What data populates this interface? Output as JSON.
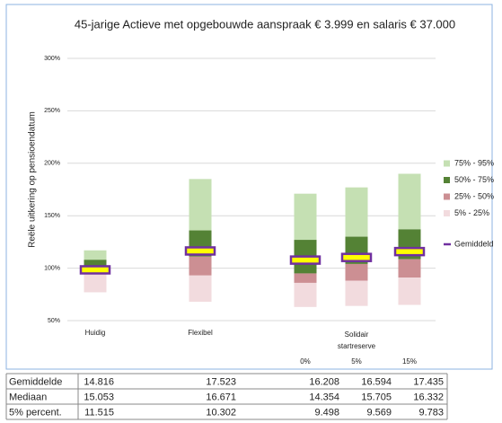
{
  "chart_data": {
    "type": "range-bar",
    "title": "45-jarige Actieve met opgebouwde aanspraak € 3.999 en salaris € 37.000",
    "y_label": "Reële uitkering op pensioendatum",
    "categories": [
      "Huidig",
      "Flexibel",
      "0%",
      "5%",
      "15%"
    ],
    "group_label": [
      "Solidair",
      "startreserve"
    ],
    "ylim": [
      50,
      300
    ],
    "yticks": [
      {
        "value": 50,
        "label": "50%"
      },
      {
        "value": 100,
        "label": "100%"
      },
      {
        "value": 150,
        "label": "150%"
      },
      {
        "value": 200,
        "label": "200%"
      },
      {
        "value": 250,
        "label": "250%"
      },
      {
        "value": 300,
        "label": "300%"
      }
    ],
    "grid": true,
    "series": [
      {
        "name": "75% - 95%",
        "color": "#c5e0b3",
        "values": [
          [
            108,
            117
          ],
          [
            136,
            185
          ],
          [
            127,
            171
          ],
          [
            130,
            177
          ],
          [
            137,
            190
          ]
        ]
      },
      {
        "name": "50% - 75%",
        "color": "#548235",
        "values": [
          [
            100,
            108
          ],
          [
            111,
            136
          ],
          [
            95,
            127
          ],
          [
            104,
            130
          ],
          [
            108.5,
            137
          ]
        ]
      },
      {
        "name": "25% - 50%",
        "color": "#cc8f93",
        "values": [
          [
            94,
            100
          ],
          [
            93,
            111
          ],
          [
            86,
            95
          ],
          [
            88,
            104
          ],
          [
            91,
            108.5
          ]
        ]
      },
      {
        "name": "5% - 25%",
        "color": "#f2dbde",
        "values": [
          [
            77,
            94
          ],
          [
            68,
            93
          ],
          [
            63,
            86
          ],
          [
            64,
            88
          ],
          [
            65,
            91
          ]
        ]
      }
    ],
    "mean": {
      "name": "Gemiddeld",
      "color": "#7030a0",
      "fill": "#ffff00",
      "values": [
        98.4,
        116.4,
        107.7,
        110.2,
        115.8
      ]
    }
  },
  "table": {
    "rows": [
      [
        "Gemiddelde",
        "14.816",
        "17.523",
        "16.208",
        "16.594",
        "17.435"
      ],
      [
        "Mediaan",
        "15.053",
        "16.671",
        "14.354",
        "15.705",
        "16.332"
      ],
      [
        "5% percent.",
        "11.515",
        "10.302",
        "9.498",
        "9.569",
        "9.783"
      ]
    ]
  }
}
